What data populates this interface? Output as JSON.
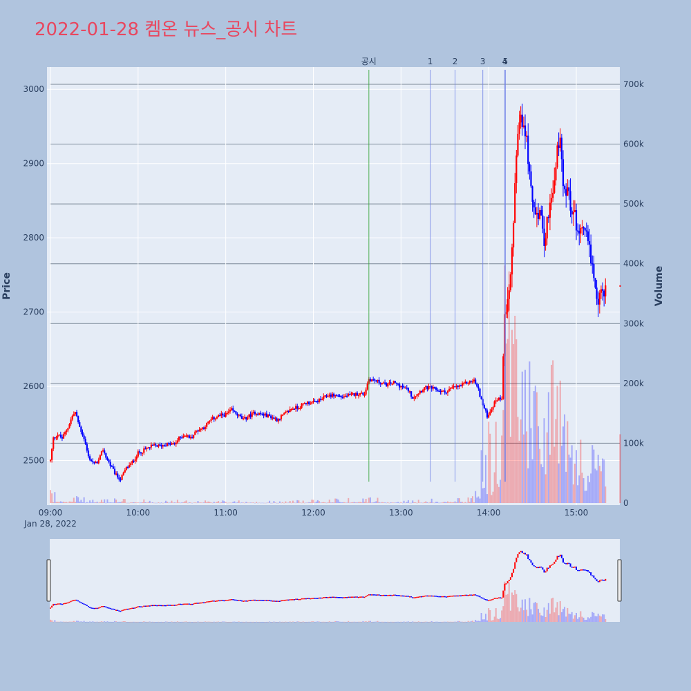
{
  "title": "2022-01-28 켐온 뉴스_공시 차트",
  "colors": {
    "up": "#ff0000",
    "down": "#0000ff",
    "plot_bg": "#e5ecf6",
    "page_bg": "#b0c4de",
    "title": "#e8475f",
    "news_line": "#2ca02c",
    "ann_line": "#6f80e8"
  },
  "chart_data": {
    "type": "candlestick",
    "date_label": "Jan 28, 2022",
    "xlabel": "",
    "ylabel": "Price",
    "y2label": "Volume",
    "xticks": [
      "09:00",
      "10:00",
      "11:00",
      "12:00",
      "13:00",
      "14:00",
      "15:00"
    ],
    "yticks": [
      "2500",
      "2600",
      "2700",
      "2800",
      "2900",
      "3000"
    ],
    "y2ticks": [
      "0",
      "100k",
      "200k",
      "300k",
      "400k",
      "500k",
      "600k",
      "700k"
    ],
    "xrange": [
      "09:00",
      "15:30"
    ],
    "ylim": [
      2440,
      3030
    ],
    "y2lim": [
      0,
      715000
    ],
    "legend": "none",
    "annotations": [
      {
        "label": "공시",
        "time": "12:38",
        "kind": "disclosure"
      },
      {
        "label": "1",
        "time": "13:20",
        "kind": "news"
      },
      {
        "label": "2",
        "time": "13:37",
        "kind": "news"
      },
      {
        "label": "3",
        "time": "13:56",
        "kind": "news"
      },
      {
        "label": "4",
        "time": "14:11",
        "kind": "news"
      },
      {
        "label": "5",
        "time": "14:11",
        "kind": "news"
      }
    ],
    "price_path": [
      [
        "09:00",
        2500
      ],
      [
        "09:02",
        2530
      ],
      [
        "09:05",
        2535
      ],
      [
        "09:08",
        2530
      ],
      [
        "09:12",
        2545
      ],
      [
        "09:15",
        2560
      ],
      [
        "09:17",
        2565
      ],
      [
        "09:20",
        2545
      ],
      [
        "09:23",
        2530
      ],
      [
        "09:26",
        2505
      ],
      [
        "09:30",
        2495
      ],
      [
        "09:33",
        2500
      ],
      [
        "09:36",
        2515
      ],
      [
        "09:38",
        2505
      ],
      [
        "09:42",
        2490
      ],
      [
        "09:45",
        2480
      ],
      [
        "09:48",
        2475
      ],
      [
        "09:52",
        2490
      ],
      [
        "09:55",
        2495
      ],
      [
        "10:00",
        2510
      ],
      [
        "10:05",
        2515
      ],
      [
        "10:10",
        2520
      ],
      [
        "10:15",
        2520
      ],
      [
        "10:20",
        2522
      ],
      [
        "10:25",
        2522
      ],
      [
        "10:28",
        2530
      ],
      [
        "10:32",
        2535
      ],
      [
        "10:36",
        2530
      ],
      [
        "10:40",
        2540
      ],
      [
        "10:45",
        2545
      ],
      [
        "10:50",
        2555
      ],
      [
        "10:55",
        2560
      ],
      [
        "11:00",
        2562
      ],
      [
        "11:04",
        2568
      ],
      [
        "11:08",
        2562
      ],
      [
        "11:12",
        2555
      ],
      [
        "11:16",
        2560
      ],
      [
        "11:20",
        2565
      ],
      [
        "11:25",
        2562
      ],
      [
        "11:30",
        2560
      ],
      [
        "11:35",
        2555
      ],
      [
        "11:40",
        2562
      ],
      [
        "11:45",
        2570
      ],
      [
        "11:50",
        2572
      ],
      [
        "11:55",
        2578
      ],
      [
        "12:00",
        2578
      ],
      [
        "12:05",
        2582
      ],
      [
        "12:10",
        2588
      ],
      [
        "12:15",
        2588
      ],
      [
        "12:20",
        2586
      ],
      [
        "12:25",
        2588
      ],
      [
        "12:30",
        2590
      ],
      [
        "12:35",
        2590
      ],
      [
        "12:38",
        2610
      ],
      [
        "12:42",
        2608
      ],
      [
        "12:46",
        2605
      ],
      [
        "12:50",
        2602
      ],
      [
        "12:55",
        2605
      ],
      [
        "13:00",
        2600
      ],
      [
        "13:05",
        2595
      ],
      [
        "13:08",
        2585
      ],
      [
        "13:12",
        2592
      ],
      [
        "13:16",
        2598
      ],
      [
        "13:20",
        2598
      ],
      [
        "13:25",
        2595
      ],
      [
        "13:30",
        2592
      ],
      [
        "13:35",
        2598
      ],
      [
        "13:40",
        2600
      ],
      [
        "13:45",
        2605
      ],
      [
        "13:50",
        2608
      ],
      [
        "13:53",
        2595
      ],
      [
        "13:56",
        2575
      ],
      [
        "13:59",
        2560
      ],
      [
        "14:02",
        2570
      ],
      [
        "14:05",
        2582
      ],
      [
        "14:09",
        2585
      ],
      [
        "14:11",
        2700
      ],
      [
        "14:13",
        2720
      ],
      [
        "14:15",
        2760
      ],
      [
        "14:17",
        2830
      ],
      [
        "14:19",
        2900
      ],
      [
        "14:21",
        2960
      ],
      [
        "14:23",
        2950
      ],
      [
        "14:25",
        2945
      ],
      [
        "14:27",
        2910
      ],
      [
        "14:29",
        2860
      ],
      [
        "14:32",
        2840
      ],
      [
        "14:35",
        2830
      ],
      [
        "14:38",
        2800
      ],
      [
        "14:42",
        2840
      ],
      [
        "14:45",
        2870
      ],
      [
        "14:47",
        2920
      ],
      [
        "14:49",
        2930
      ],
      [
        "14:51",
        2880
      ],
      [
        "14:54",
        2860
      ],
      [
        "14:57",
        2840
      ],
      [
        "15:00",
        2820
      ],
      [
        "15:03",
        2810
      ],
      [
        "15:05",
        2820
      ],
      [
        "15:08",
        2800
      ],
      [
        "15:10",
        2770
      ],
      [
        "15:12",
        2740
      ],
      [
        "15:14",
        2710
      ],
      [
        "15:15",
        2715
      ],
      [
        "15:20",
        2735
      ]
    ],
    "volume_profile": [
      [
        "09:00",
        15000
      ],
      [
        "09:30",
        6000
      ],
      [
        "10:00",
        5000
      ],
      [
        "11:00",
        3000
      ],
      [
        "12:00",
        4000
      ],
      [
        "12:38",
        8000
      ],
      [
        "13:00",
        3000
      ],
      [
        "13:50",
        8000
      ],
      [
        "14:11",
        300000
      ],
      [
        "14:20",
        240000
      ],
      [
        "14:30",
        150000
      ],
      [
        "14:45",
        170000
      ],
      [
        "15:00",
        90000
      ],
      [
        "15:15",
        60000
      ]
    ],
    "range_slider": true
  }
}
